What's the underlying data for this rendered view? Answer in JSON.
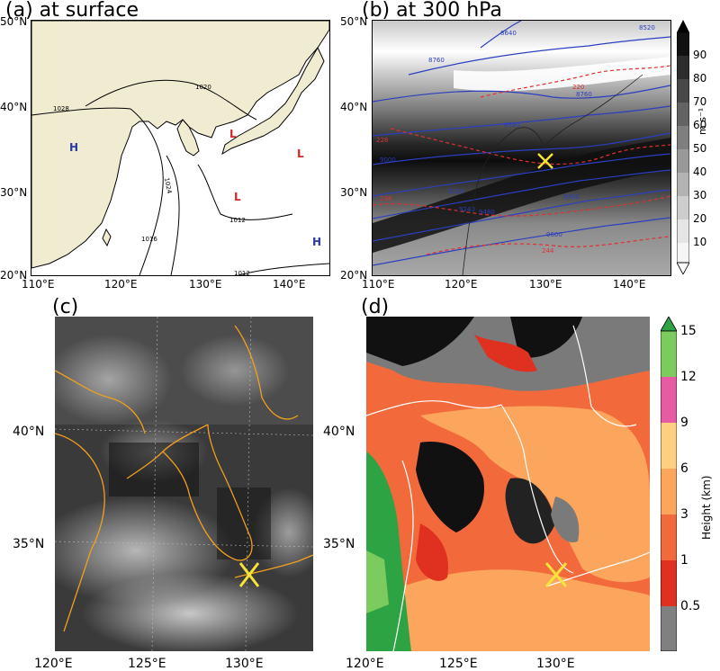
{
  "panels": {
    "a": {
      "title": "(a) at surface",
      "y_ticks": [
        "50°N",
        "40°N",
        "30°N",
        "20°N"
      ],
      "x_ticks": [
        "110°E",
        "120°E",
        "130°E",
        "140°E"
      ],
      "isobars": [
        "1028",
        "1024",
        "1020",
        "1016",
        "1012",
        "1012"
      ],
      "pressure_centers": [
        {
          "label": "H",
          "color": "#2b3a9e"
        },
        {
          "label": "L",
          "color": "#d62728"
        },
        {
          "label": "L",
          "color": "#d62728"
        },
        {
          "label": "L",
          "color": "#d62728"
        },
        {
          "label": "H",
          "color": "#2b3a9e"
        }
      ]
    },
    "b": {
      "title": "(b) at 300 hPa",
      "y_ticks": [
        "50°N",
        "40°N",
        "30°N",
        "20°N"
      ],
      "x_ticks": [
        "110°E",
        "120°E",
        "130°E",
        "140°E"
      ],
      "height_contours": [
        "8640",
        "8520",
        "8760",
        "8760",
        "8880",
        "9000",
        "9120",
        "9240",
        "9360",
        "9480",
        "9600"
      ],
      "temp_contours": [
        "220",
        "228",
        "236",
        "244"
      ],
      "colorbar": {
        "ticks": [
          "90",
          "80",
          "70",
          "60",
          "50",
          "40",
          "30",
          "20",
          "10"
        ],
        "unit": "m s⁻¹"
      }
    },
    "c": {
      "title": "(c)",
      "y_ticks": [
        "40°N",
        "35°N"
      ],
      "x_ticks": [
        "120°E",
        "125°E",
        "130°E"
      ]
    },
    "d": {
      "title": "(d)",
      "y_ticks": [
        "40°N",
        "35°N"
      ],
      "x_ticks": [
        "120°E",
        "125°E",
        "130°E"
      ],
      "colorbar": {
        "ticks": [
          "15",
          "12",
          "9",
          "6",
          "3",
          "1",
          "0.5"
        ],
        "label": "Height (km)"
      }
    }
  },
  "colors": {
    "land": "#efecd2",
    "coast_orange": "#f0a020",
    "marker_yellow": "#f5e33a",
    "height_bands": [
      "#808080",
      "#e03020",
      "#f26a3c",
      "#fba65c",
      "#fcd080",
      "#e75aa4",
      "#7ccb5e",
      "#2ea344"
    ]
  }
}
